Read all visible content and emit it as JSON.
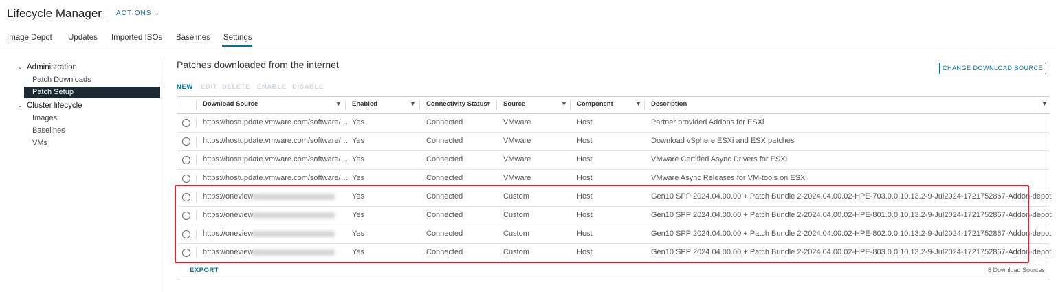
{
  "header": {
    "title": "Lifecycle Manager",
    "actions": "ACTIONS"
  },
  "tabs": [
    "Image Depot",
    "Updates",
    "Imported ISOs",
    "Baselines",
    "Settings"
  ],
  "sidebar": [
    {
      "label": "Administration",
      "items": [
        "Patch Downloads",
        "Patch Setup"
      ]
    },
    {
      "label": "Cluster lifecycle",
      "items": [
        "Images",
        "Baselines",
        "VMs"
      ]
    }
  ],
  "panel": {
    "title": "Patches downloaded from the internet",
    "button": "CHANGE DOWNLOAD SOURCE",
    "toolbar": [
      "NEW",
      "EDIT",
      "DELETE",
      "ENABLE",
      "DISABLE"
    ]
  },
  "table": {
    "columns": [
      "Download Source",
      "Enabled",
      "Connectivity Status",
      "Source",
      "Component",
      "Description"
    ],
    "rows": [
      [
        "https://hostupdate.vmware.com/software/…",
        "Yes",
        "Connected",
        "VMware",
        "Host",
        "Partner provided Addons for ESXi"
      ],
      [
        "https://hostupdate.vmware.com/software/…",
        "Yes",
        "Connected",
        "VMware",
        "Host",
        "Download vSphere ESXi and ESX patches"
      ],
      [
        "https://hostupdate.vmware.com/software/…",
        "Yes",
        "Connected",
        "VMware",
        "Host",
        "VMware Certified Async Drivers for ESXi"
      ],
      [
        "https://hostupdate.vmware.com/software/…",
        "Yes",
        "Connected",
        "VMware",
        "Host",
        "VMware Async Releases for VM-tools on ESXi"
      ],
      [
        "https://oneview",
        "Yes",
        "Connected",
        "Custom",
        "Host",
        "Gen10 SPP 2024.04.00.00 + Patch Bundle 2-2024.04.00.02-HPE-703.0.0.10.13.2-9-Jul2024-1721752867-Addon-depot"
      ],
      [
        "https://oneview",
        "Yes",
        "Connected",
        "Custom",
        "Host",
        "Gen10 SPP 2024.04.00.00 + Patch Bundle 2-2024.04.00.02-HPE-801.0.0.10.13.2-9-Jul2024-1721752867-Addon-depot"
      ],
      [
        "https://oneview",
        "Yes",
        "Connected",
        "Custom",
        "Host",
        "Gen10 SPP 2024.04.00.00 + Patch Bundle 2-2024.04.00.02-HPE-802.0.0.10.13.2-9-Jul2024-1721752867-Addon-depot"
      ],
      [
        "https://oneview",
        "Yes",
        "Connected",
        "Custom",
        "Host",
        "Gen10 SPP 2024.04.00.00 + Patch Bundle 2-2024.04.00.02-HPE-803.0.0.10.13.2-9-Jul2024-1721752867-Addon-depot"
      ]
    ],
    "footer": {
      "export": "EXPORT",
      "count": "8 Download Sources"
    }
  }
}
